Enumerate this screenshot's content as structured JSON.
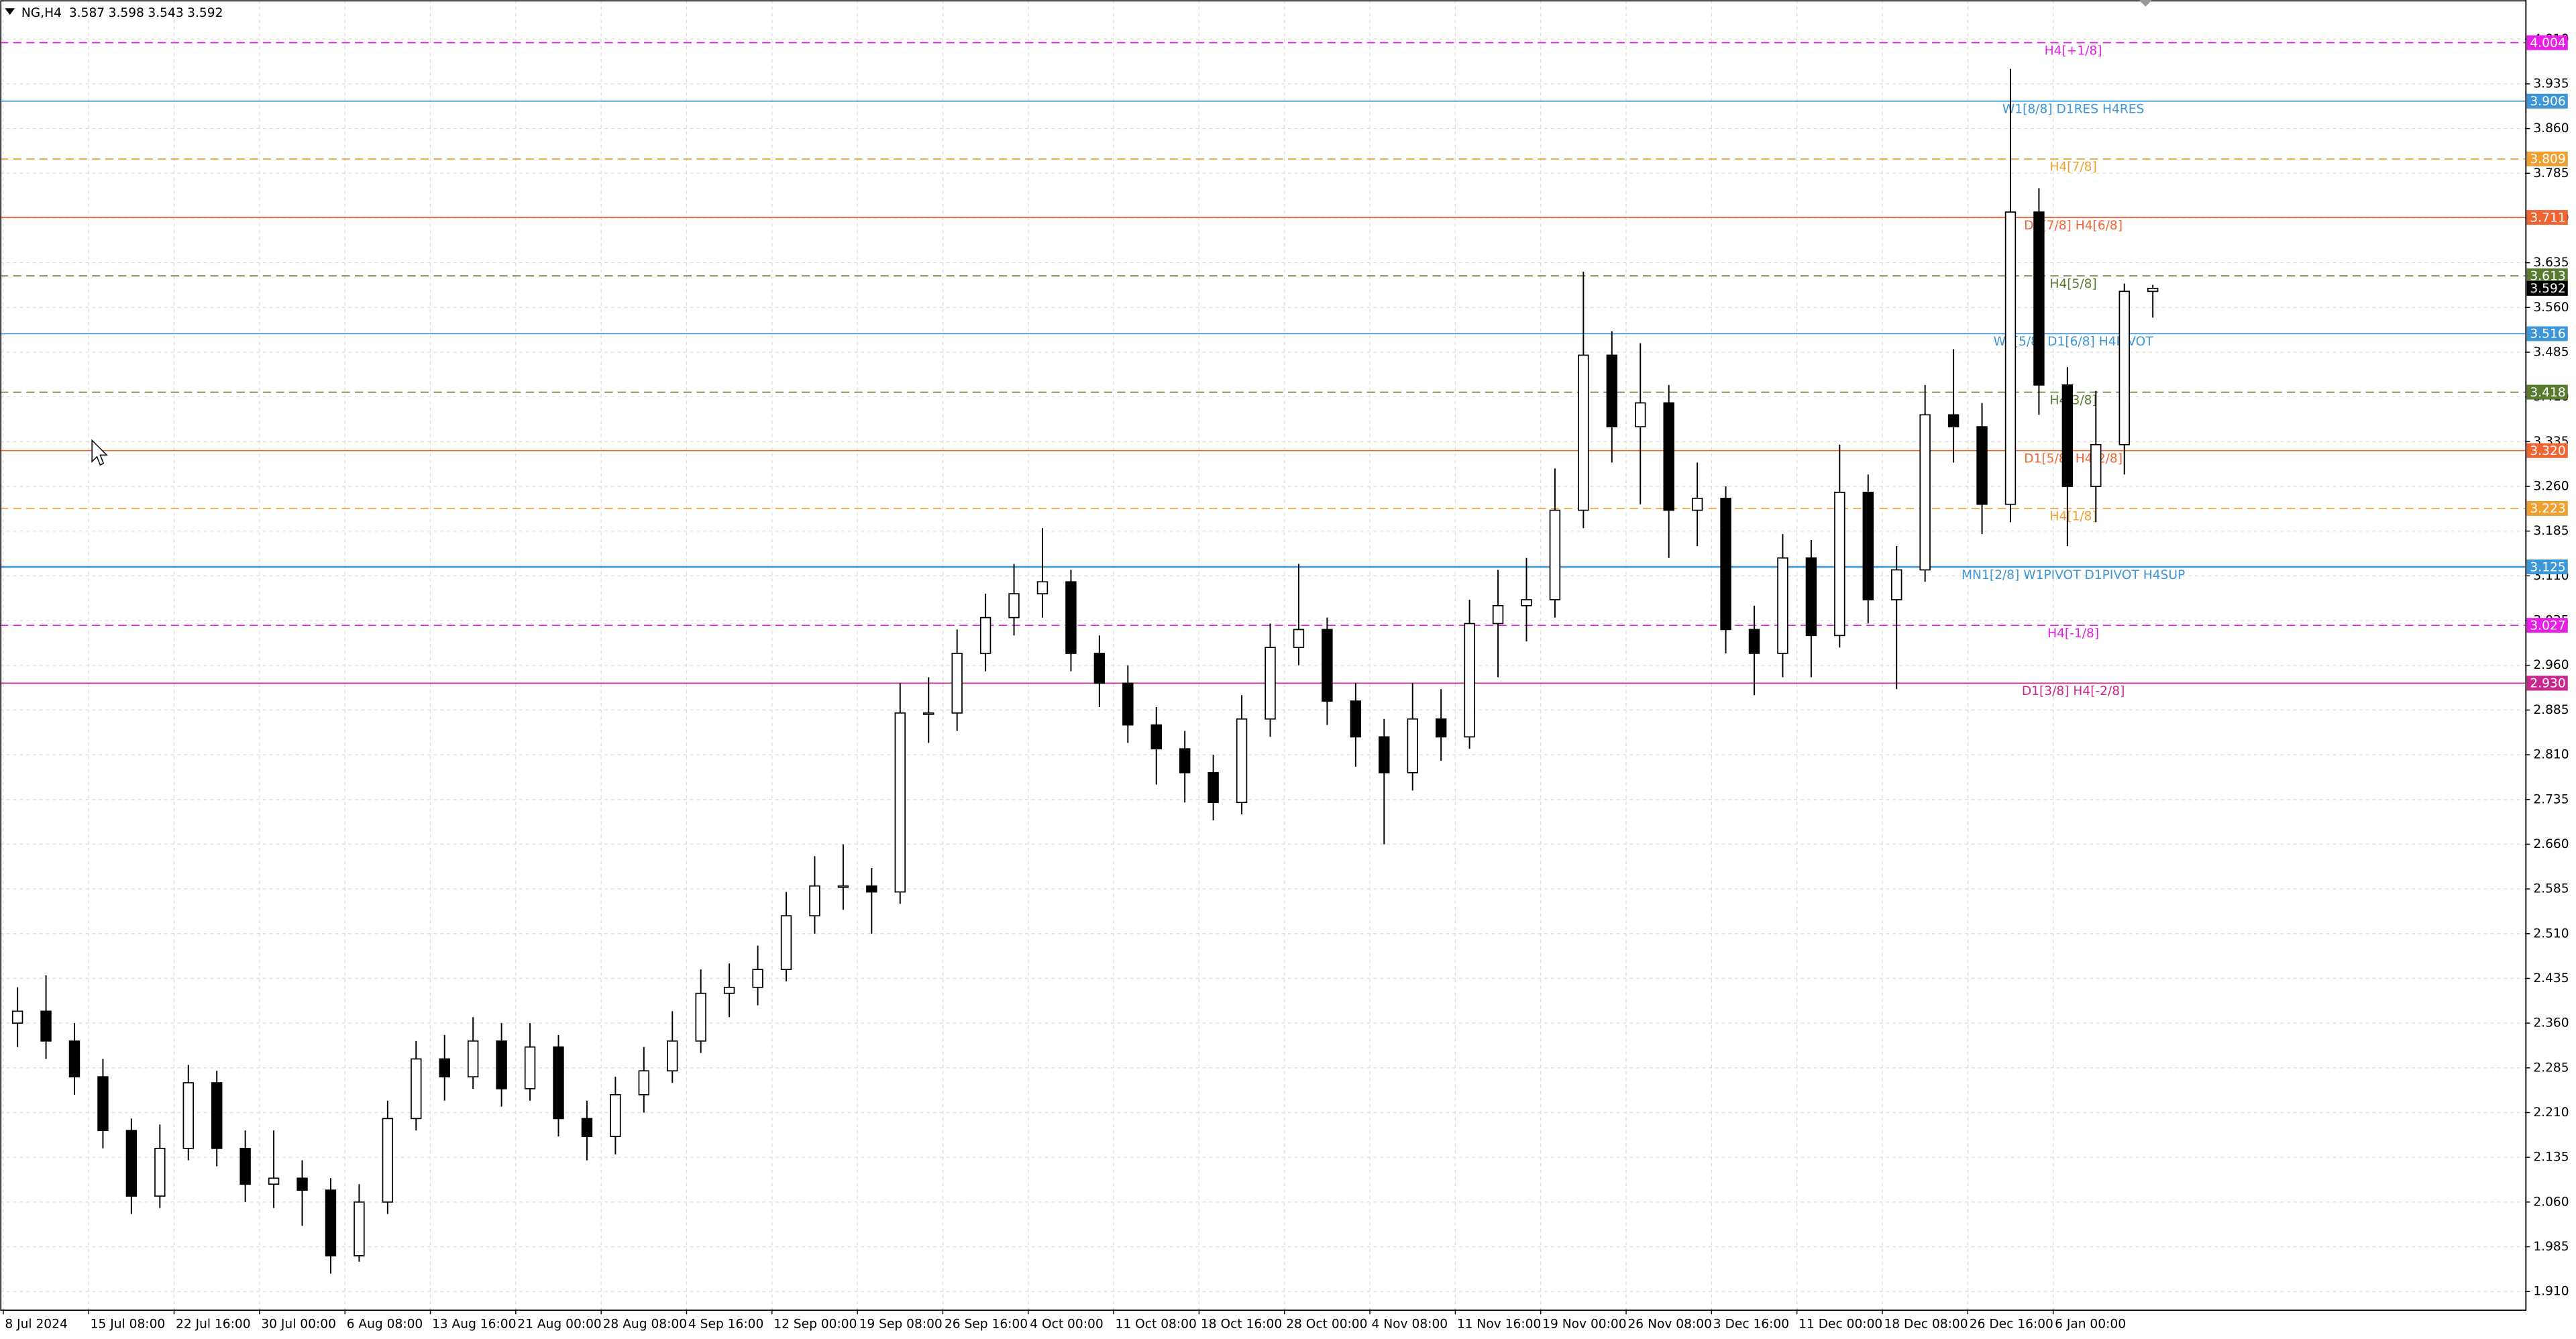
{
  "chart_data": {
    "type": "candlestick",
    "symbol": "NG,H4",
    "categories": [
      "8 Jul 2024",
      null,
      null,
      "15 Jul 08:00",
      null,
      null,
      "22 Jul 16:00",
      null,
      null,
      "30 Jul 00:00",
      null,
      null,
      "6 Aug 08:00",
      null,
      null,
      "13 Aug 16:00",
      null,
      null,
      "21 Aug 00:00",
      null,
      null,
      "28 Aug 08:00",
      null,
      null,
      "4 Sep 16:00",
      null,
      null,
      "12 Sep 00:00",
      null,
      null,
      "19 Sep 08:00",
      null,
      null,
      "26 Sep 16:00",
      null,
      null,
      "4 Oct 00:00",
      null,
      null,
      "11 Oct 08:00",
      null,
      null,
      "18 Oct 16:00",
      null,
      null,
      "28 Oct 00:00",
      null,
      null,
      "4 Nov 08:00",
      null,
      null,
      "11 Nov 16:00",
      null,
      null,
      "19 Nov 00:00",
      null,
      null,
      "26 Nov 08:00",
      null,
      null,
      "3 Dec 16:00",
      null,
      null,
      "11 Dec 00:00",
      null,
      null,
      "18 Dec 08:00",
      null,
      null,
      "26 Dec 16:00",
      null,
      null,
      "6 Jan 00:00",
      null,
      null,
      null
    ],
    "open": [
      2.36,
      2.38,
      2.33,
      2.27,
      2.18,
      2.07,
      2.15,
      2.26,
      2.15,
      2.09,
      2.1,
      2.08,
      1.97,
      2.06,
      2.2,
      2.3,
      2.27,
      2.33,
      2.25,
      2.32,
      2.2,
      2.17,
      2.24,
      2.28,
      2.33,
      2.41,
      2.42,
      2.45,
      2.54,
      2.59,
      2.59,
      2.58,
      2.88,
      2.88,
      2.98,
      3.04,
      3.08,
      3.1,
      2.98,
      2.93,
      2.86,
      2.82,
      2.78,
      2.73,
      2.87,
      2.99,
      3.02,
      2.9,
      2.84,
      2.78,
      2.87,
      2.84,
      3.03,
      3.06,
      3.07,
      3.22,
      3.48,
      3.36,
      3.4,
      3.22,
      3.24,
      3.02,
      2.98,
      3.14,
      3.01,
      3.25,
      3.07,
      3.12,
      3.38,
      3.36,
      3.23,
      3.72,
      3.43,
      3.26,
      3.33,
      3.587
    ],
    "high": [
      2.42,
      2.44,
      2.36,
      2.3,
      2.2,
      2.19,
      2.29,
      2.28,
      2.18,
      2.18,
      2.13,
      2.1,
      2.09,
      2.23,
      2.33,
      2.34,
      2.37,
      2.36,
      2.36,
      2.34,
      2.23,
      2.27,
      2.32,
      2.38,
      2.45,
      2.46,
      2.49,
      2.58,
      2.64,
      2.66,
      2.62,
      2.93,
      2.94,
      3.02,
      3.08,
      3.13,
      3.19,
      3.12,
      3.01,
      2.96,
      2.89,
      2.85,
      2.81,
      2.91,
      3.03,
      3.13,
      3.04,
      2.93,
      2.87,
      2.93,
      2.92,
      3.07,
      3.12,
      3.14,
      3.29,
      3.62,
      3.52,
      3.5,
      3.43,
      3.3,
      3.26,
      3.06,
      3.18,
      3.17,
      3.33,
      3.28,
      3.16,
      3.43,
      3.49,
      3.4,
      3.96,
      3.76,
      3.46,
      3.42,
      3.6,
      3.598
    ],
    "low": [
      2.32,
      2.3,
      2.24,
      2.15,
      2.04,
      2.05,
      2.13,
      2.12,
      2.06,
      2.05,
      2.02,
      1.94,
      1.96,
      2.04,
      2.18,
      2.23,
      2.25,
      2.22,
      2.23,
      2.17,
      2.13,
      2.14,
      2.21,
      2.26,
      2.31,
      2.37,
      2.39,
      2.43,
      2.51,
      2.55,
      2.51,
      2.56,
      2.83,
      2.85,
      2.95,
      3.01,
      3.04,
      2.95,
      2.89,
      2.83,
      2.76,
      2.73,
      2.7,
      2.71,
      2.84,
      2.96,
      2.86,
      2.79,
      2.66,
      2.75,
      2.8,
      2.82,
      2.94,
      3.0,
      3.04,
      3.19,
      3.3,
      3.23,
      3.14,
      3.16,
      2.98,
      2.91,
      2.94,
      2.94,
      2.99,
      3.03,
      2.92,
      3.1,
      3.3,
      3.18,
      3.2,
      3.38,
      3.16,
      3.2,
      3.28,
      3.543
    ],
    "close": [
      2.38,
      2.33,
      2.27,
      2.18,
      2.07,
      2.15,
      2.26,
      2.15,
      2.09,
      2.1,
      2.08,
      1.97,
      2.06,
      2.2,
      2.3,
      2.27,
      2.33,
      2.25,
      2.32,
      2.2,
      2.17,
      2.24,
      2.28,
      2.33,
      2.41,
      2.42,
      2.45,
      2.54,
      2.59,
      2.59,
      2.58,
      2.88,
      2.88,
      2.98,
      3.04,
      3.08,
      3.1,
      2.98,
      2.93,
      2.86,
      2.82,
      2.78,
      2.73,
      2.87,
      2.99,
      3.02,
      2.9,
      2.84,
      2.78,
      2.87,
      2.84,
      3.03,
      3.06,
      3.07,
      3.22,
      3.48,
      3.36,
      3.4,
      3.22,
      3.24,
      3.02,
      2.98,
      3.14,
      3.01,
      3.25,
      3.07,
      3.12,
      3.38,
      3.36,
      3.23,
      3.72,
      3.43,
      3.26,
      3.33,
      3.587,
      3.592
    ],
    "ylim": [
      1.88,
      4.07
    ],
    "yticks": [
      {
        "value": 1.91,
        "label": "1.910"
      },
      1.985,
      {
        "value": 2.06,
        "label": "2.060"
      },
      2.135,
      {
        "value": 2.21,
        "label": "2.210"
      },
      2.285,
      {
        "value": 2.36,
        "label": "2.360"
      },
      2.435,
      {
        "value": 2.51,
        "label": "2.510"
      },
      2.585,
      {
        "value": 2.66,
        "label": "2.660"
      },
      2.735,
      {
        "value": 2.81,
        "label": "2.810"
      },
      2.885,
      {
        "value": 2.96,
        "label": "2.960"
      },
      3.035,
      {
        "value": 3.11,
        "label": "3.110"
      },
      3.185,
      {
        "value": 3.26,
        "label": "3.260"
      },
      3.335,
      {
        "value": 3.41,
        "label": "3.410"
      },
      3.485,
      {
        "value": 3.56,
        "label": "3.560"
      },
      3.635,
      {
        "value": 3.71,
        "label": "3.710"
      },
      3.785,
      {
        "value": 3.86,
        "label": "3.860"
      },
      3.935,
      {
        "value": 4.01,
        "label": "4.010"
      }
    ],
    "grid": true,
    "levels": [
      {
        "name": "H4[+1/8]",
        "value": 4.004,
        "color": "#e61ee6",
        "dashed": true
      },
      {
        "name": "W1[8/8] D1RES H4RES",
        "value": 3.906,
        "color": "#3c96d8",
        "dashed": false
      },
      {
        "name": "H4[7/8]",
        "value": 3.809,
        "color": "#f0a032",
        "dashed": true
      },
      {
        "name": "D1[7/8] H4[6/8]",
        "value": 3.711,
        "color": "#f06432",
        "dashed": false
      },
      {
        "name": "H4[5/8]",
        "value": 3.613,
        "color": "#5a7a32",
        "dashed": true
      },
      {
        "name": "W1[5/8] D1[6/8] H4PIVOT",
        "value": 3.516,
        "color": "#3c96d8",
        "dashed": false
      },
      {
        "name": "H4[3/8]",
        "value": 3.418,
        "color": "#5a7a32",
        "dashed": true
      },
      {
        "name": "D1[5/8] H4[2/8]",
        "value": 3.32,
        "value_label": "3.320",
        "color": "#f06432",
        "dashed": false
      },
      {
        "name": "H4[1/8]",
        "value": 3.223,
        "color": "#f0a032",
        "dashed": true
      },
      {
        "name": "MN1[2/8] W1PIVOT D1PIVOT H4SUP",
        "value": 3.125,
        "color": "#3c96d8",
        "dashed": false
      },
      {
        "name": "H4[-1/8]",
        "value": 3.027,
        "color": "#e61ee6",
        "dashed": true
      },
      {
        "name": "D1[3/8] H4[-2/8]",
        "value": 2.93,
        "value_label": "2.930",
        "color": "#c8288c",
        "dashed": false
      }
    ]
  }
}
